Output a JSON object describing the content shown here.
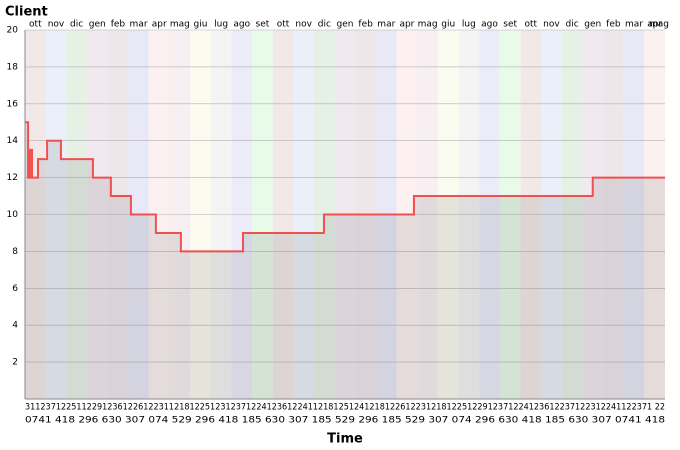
{
  "chart_data": {
    "type": "step-line",
    "y_title": "Client",
    "x_title": "Time",
    "months": [
      "ott",
      "nov",
      "dic",
      "gen",
      "feb",
      "mar",
      "apr",
      "mag",
      "giu",
      "lug",
      "ago",
      "set",
      "ott",
      "nov",
      "dic",
      "gen",
      "feb",
      "mar",
      "apr",
      "mag",
      "giu",
      "lug",
      "ago",
      "set",
      "ott",
      "nov",
      "dic",
      "gen",
      "feb",
      "mar",
      "apr",
      "mag"
    ],
    "band_colors": [
      "#f3e8e8",
      "#ebeff9",
      "#e6f1e6",
      "#f1e8f0",
      "#efe6ea",
      "#e8e8f6",
      "#fcf0f0",
      "#f7eff1",
      "#fbfbef",
      "#f4f4f4",
      "#ecebfa",
      "#e8fbe8"
    ],
    "x_axis_rows": [
      "31123712251122912361226122311218122512312371224123612241121812512412181226122312181225122912371224123612237122312241122371 22",
      "0741 418 296 630 307 074 529 296 418 185 630 307 185 529 296 185 529 307 074 296 630 418 185 630 307 0741 418"
    ],
    "xlim": [
      0,
      31
    ],
    "ylim": [
      0,
      20
    ],
    "yticks": [
      2,
      4,
      6,
      8,
      10,
      12,
      14,
      16,
      18,
      20
    ],
    "grid": true,
    "series": [
      {
        "name": "Client",
        "color": "#f05050",
        "x": [
          0,
          0.15,
          0.24,
          0.34,
          0.63,
          1.07,
          1.74,
          3.29,
          4.16,
          5.13,
          6.34,
          7.55,
          10.56,
          14.48,
          18.84,
          27.5,
          31
        ],
        "values": [
          15,
          12,
          13.5,
          12,
          13,
          14,
          13,
          12,
          11,
          10,
          9,
          8,
          9,
          10,
          11,
          12,
          12
        ]
      }
    ]
  }
}
